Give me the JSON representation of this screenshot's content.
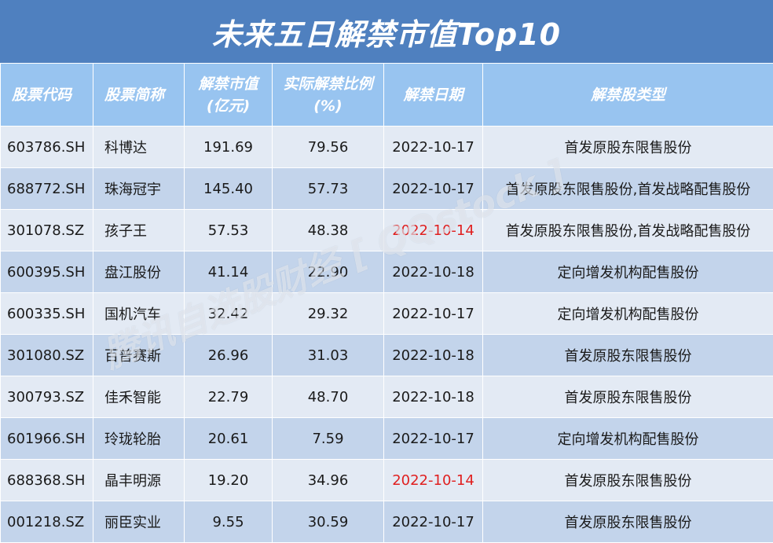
{
  "title": "未来五日解禁市值Top10",
  "headers": {
    "code": "股票代码",
    "name": "股票简称",
    "value": "解禁市值\n(亿元)",
    "ratio": "实际解禁比例\n(%)",
    "date": "解禁日期",
    "type": "解禁股类型"
  },
  "rows": [
    {
      "code": "603786.SH",
      "name": "科博达",
      "value": "191.69",
      "ratio": "79.56",
      "date": "2022-10-17",
      "date_highlight": false,
      "type": "首发原股东限售股份"
    },
    {
      "code": "688772.SH",
      "name": "珠海冠宇",
      "value": "145.40",
      "ratio": "57.73",
      "date": "2022-10-17",
      "date_highlight": false,
      "type": "首发原股东限售股份,首发战略配售股份"
    },
    {
      "code": "301078.SZ",
      "name": "孩子王",
      "value": "57.53",
      "ratio": "48.38",
      "date": "2022-10-14",
      "date_highlight": true,
      "type": "首发原股东限售股份,首发战略配售股份"
    },
    {
      "code": "600395.SH",
      "name": "盘江股份",
      "value": "41.14",
      "ratio": "22.90",
      "date": "2022-10-18",
      "date_highlight": false,
      "type": "定向增发机构配售股份"
    },
    {
      "code": "600335.SH",
      "name": "国机汽车",
      "value": "32.42",
      "ratio": "29.32",
      "date": "2022-10-17",
      "date_highlight": false,
      "type": "定向增发机构配售股份"
    },
    {
      "code": "301080.SZ",
      "name": "百普赛斯",
      "value": "26.96",
      "ratio": "31.03",
      "date": "2022-10-18",
      "date_highlight": false,
      "type": "首发原股东限售股份"
    },
    {
      "code": "300793.SZ",
      "name": "佳禾智能",
      "value": "22.79",
      "ratio": "48.70",
      "date": "2022-10-18",
      "date_highlight": false,
      "type": "首发原股东限售股份"
    },
    {
      "code": "601966.SH",
      "name": "玲珑轮胎",
      "value": "20.61",
      "ratio": "7.59",
      "date": "2022-10-17",
      "date_highlight": false,
      "type": "定向增发机构配售股份"
    },
    {
      "code": "688368.SH",
      "name": "晶丰明源",
      "value": "19.20",
      "ratio": "34.96",
      "date": "2022-10-14",
      "date_highlight": true,
      "type": "首发原股东限售股份"
    },
    {
      "code": "001218.SZ",
      "name": "丽臣实业",
      "value": "9.55",
      "ratio": "30.59",
      "date": "2022-10-17",
      "date_highlight": false,
      "type": "首发原股东限售股份"
    }
  ],
  "watermark": "腾讯自选股财经 [ QQstock ]",
  "colors": {
    "title_bg": "#4f80bf",
    "header_bg": "#98c4f0",
    "row_odd": "#e3eaf4",
    "row_even": "#c3d4eb",
    "date_highlight": "#e02020"
  }
}
